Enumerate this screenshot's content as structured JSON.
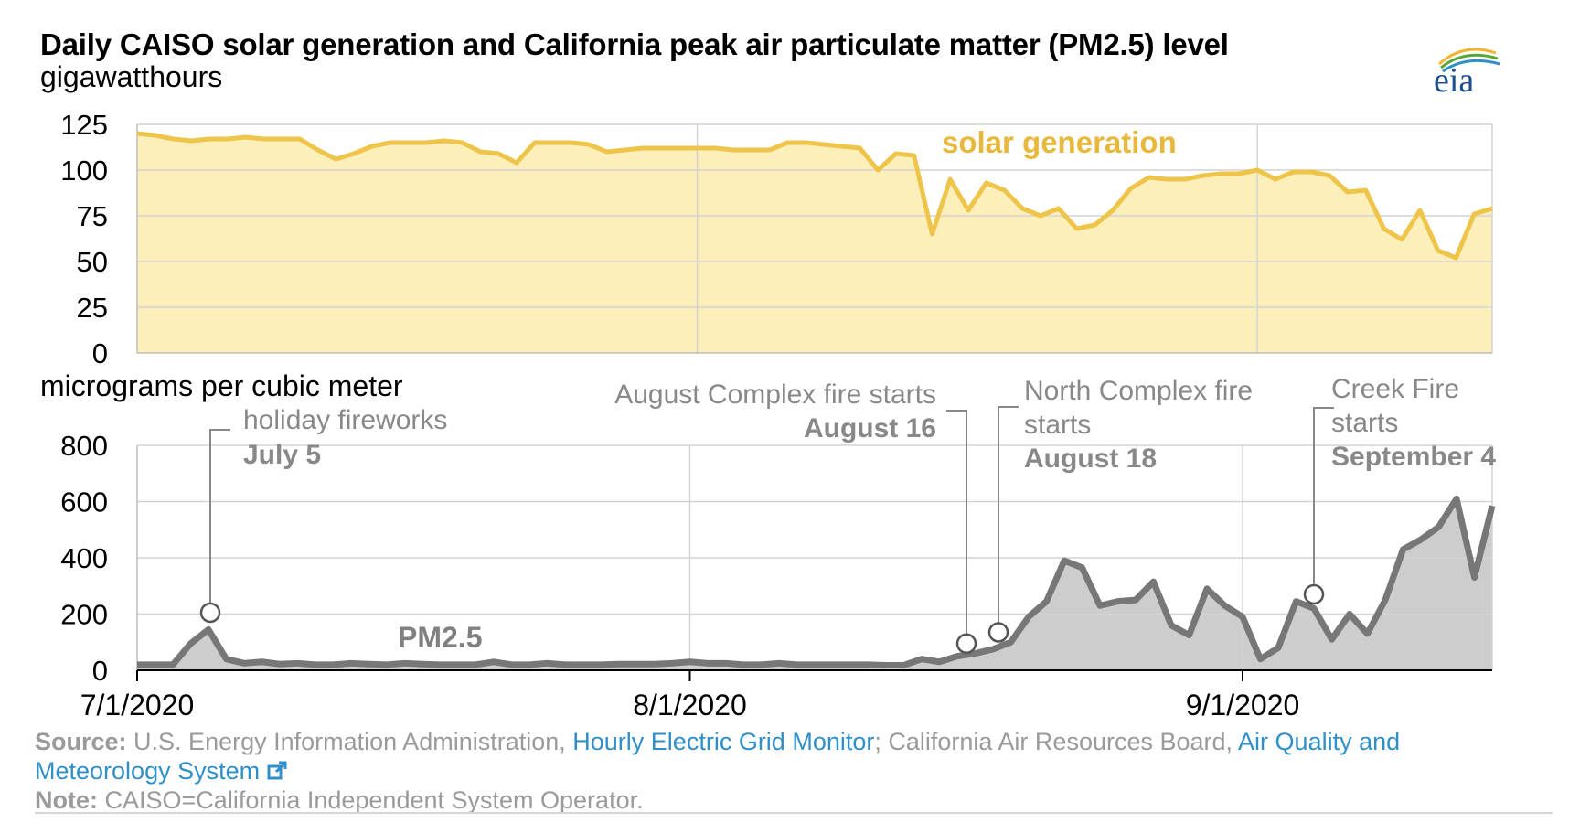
{
  "header": {
    "title": "Daily CAISO solar generation and California peak air particulate matter (PM2.5) level",
    "logo_text": "eia"
  },
  "footer": {
    "source_label": "Source:",
    "source_text": "U.S. Energy Information Administration,",
    "source_link1": "Hourly Electric Grid Monitor",
    "source_mid": "; California Air Resources Board,",
    "source_link2a": "Air Quality and",
    "source_link2b": "Meteorology System",
    "note_label": "Note:",
    "note_text": "CAISO=California Independent System Operator."
  },
  "colors": {
    "solar_line": "#eec54a",
    "solar_fill": "#fcefb9",
    "solar_label": "#e8b83a",
    "pm_line": "#777777",
    "pm_fill": "#cdcdcd",
    "pm_label": "#808080",
    "grid": "#d4d4d4",
    "annotation": "#888888",
    "link": "#2f8fc9"
  },
  "chart_data": [
    {
      "type": "area",
      "ylabel": "gigawatthours",
      "ylim": [
        0,
        125
      ],
      "yticks": [
        0,
        25,
        50,
        75,
        100,
        125
      ],
      "x_start": "7/1/2020",
      "x_end": "9/14/2020",
      "grid": true,
      "series": [
        {
          "name": "solar generation",
          "values": [
            120,
            119,
            117,
            116,
            117,
            117,
            118,
            117,
            117,
            117,
            111,
            106,
            109,
            113,
            115,
            115,
            115,
            116,
            115,
            110,
            109,
            104,
            115,
            115,
            115,
            114,
            110,
            111,
            112,
            112,
            112,
            112,
            112,
            111,
            111,
            111,
            115,
            115,
            114,
            113,
            112,
            100,
            109,
            108,
            65,
            95,
            78,
            93,
            89,
            79,
            75,
            79,
            68,
            70,
            78,
            90,
            96,
            95,
            95,
            97,
            98,
            98,
            100,
            95,
            99,
            99,
            97,
            88,
            89,
            68,
            62,
            78,
            56,
            52,
            76,
            79
          ]
        }
      ]
    },
    {
      "type": "area",
      "ylabel": "micrograms per cubic meter",
      "ylim": [
        0,
        800
      ],
      "yticks": [
        0,
        200,
        400,
        600,
        800
      ],
      "xticks": [
        "7/1/2020",
        "8/1/2020",
        "9/1/2020"
      ],
      "grid": true,
      "series": [
        {
          "name": "PM2.5",
          "values": [
            20,
            20,
            20,
            95,
            145,
            40,
            25,
            30,
            22,
            25,
            20,
            20,
            25,
            22,
            20,
            25,
            22,
            20,
            20,
            20,
            30,
            20,
            20,
            25,
            20,
            20,
            20,
            22,
            22,
            22,
            25,
            30,
            25,
            25,
            20,
            20,
            25,
            20,
            20,
            20,
            20,
            20,
            18,
            18,
            40,
            30,
            50,
            60,
            75,
            100,
            190,
            245,
            390,
            365,
            230,
            245,
            250,
            315,
            160,
            125,
            290,
            230,
            190,
            40,
            80,
            245,
            220,
            110,
            200,
            130,
            250,
            430,
            465,
            510,
            610,
            330,
            585
          ]
        }
      ],
      "annotations": [
        {
          "label": "holiday fireworks",
          "date": "July 5",
          "value": 205
        },
        {
          "label": "August Complex fire starts",
          "date": "August 16",
          "value": 95
        },
        {
          "label": "North Complex fire starts",
          "label_line1": "North Complex fire",
          "label_line2": "starts",
          "date": "August 18",
          "value": 135
        },
        {
          "label": "Creek Fire starts",
          "label_line1": "Creek Fire",
          "label_line2": "starts",
          "date": "September 4",
          "value": 270
        }
      ]
    }
  ]
}
